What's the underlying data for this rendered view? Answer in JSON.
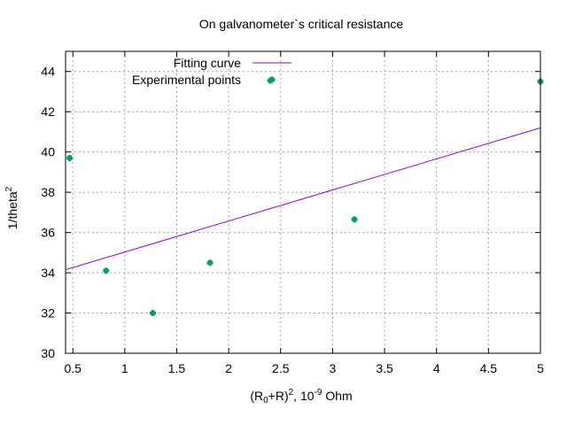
{
  "chart_data": {
    "type": "scatter",
    "title": "On galvanometer`s critical resistance",
    "xlabel": {
      "base": "(R",
      "sub": "0",
      "mid": "+R)",
      "sup": "2",
      "tail": ", 10",
      "sup2": "-9",
      "unit": " Ohm"
    },
    "ylabel": {
      "base": "1/theta",
      "sup": "2"
    },
    "xlim": [
      0.43,
      5.0
    ],
    "ylim": [
      30,
      45
    ],
    "x_ticks": [
      0.5,
      1,
      1.5,
      2,
      2.5,
      3,
      3.5,
      4,
      4.5,
      5
    ],
    "x_tick_labels": [
      "0.5",
      "1",
      "1.5",
      "2",
      "2.5",
      "3",
      "3.5",
      "4",
      "4.5",
      "5"
    ],
    "y_ticks": [
      30,
      32,
      34,
      36,
      38,
      40,
      42,
      44
    ],
    "y_tick_labels": [
      "30",
      "32",
      "34",
      "36",
      "38",
      "40",
      "42",
      "44"
    ],
    "grid": true,
    "legend_position": "top-left",
    "series": [
      {
        "name": "Fitting curve",
        "kind": "line",
        "color": "#9400d3",
        "x": [
          0.43,
          5.0
        ],
        "y": [
          34.15,
          41.2
        ]
      },
      {
        "name": "Experimental points",
        "kind": "points",
        "color": "#009e73",
        "x": [
          0.47,
          0.82,
          1.27,
          1.82,
          2.4,
          3.21,
          5.0
        ],
        "y": [
          39.7,
          34.1,
          32.0,
          34.5,
          43.55,
          36.65,
          43.5
        ]
      }
    ]
  }
}
